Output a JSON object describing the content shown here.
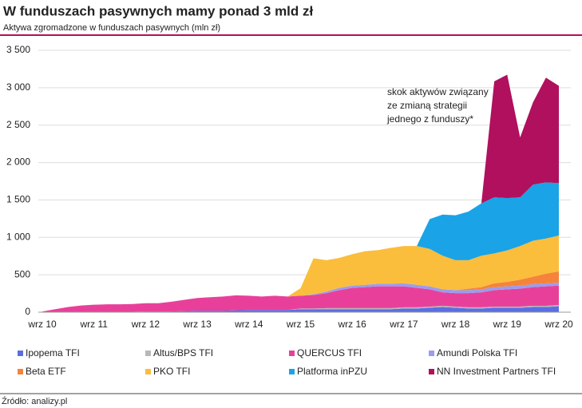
{
  "chart_data": {
    "type": "stacked-area",
    "title": "W funduszach pasywnych mamy ponad 3 mld zł",
    "subtitle": "Aktywa zgromadzone w funduszach pasywnych (mln zł)",
    "source": "Źródło: analizy.pl",
    "annotation": [
      "skok aktywów związany",
      "ze zmianą strategii",
      "jednego z funduszy*"
    ],
    "categories": [
      "wrz 10",
      null,
      null,
      null,
      "wrz 11",
      null,
      null,
      null,
      "wrz 12",
      null,
      null,
      null,
      "wrz 13",
      null,
      null,
      null,
      "wrz 14",
      null,
      null,
      null,
      "wrz 15",
      null,
      null,
      null,
      "wrz 16",
      null,
      null,
      null,
      "wrz 17",
      null,
      null,
      null,
      "wrz 18",
      null,
      null,
      null,
      "wrz 19",
      null,
      null,
      null,
      "wrz 20"
    ],
    "ylim": [
      0,
      3500
    ],
    "yticks": [
      0,
      {
        "value": 500,
        "label": "500"
      },
      {
        "value": 1000,
        "label": "1 000"
      },
      {
        "value": 1500,
        "label": "1 500"
      },
      {
        "value": 2000,
        "label": "2 000"
      },
      {
        "value": 2500,
        "label": "2 500"
      },
      {
        "value": 3000,
        "label": "3 000"
      },
      {
        "value": 3500,
        "label": "3 500"
      }
    ],
    "series": [
      {
        "name": "Ipopema TFI",
        "color": "#5b6ee1",
        "values": [
          0,
          0,
          0,
          0,
          5,
          5,
          5,
          5,
          10,
          10,
          10,
          15,
          20,
          20,
          20,
          25,
          30,
          30,
          30,
          30,
          40,
          40,
          40,
          40,
          40,
          40,
          40,
          40,
          50,
          50,
          60,
          70,
          60,
          50,
          50,
          60,
          60,
          60,
          70,
          70,
          80
        ]
      },
      {
        "name": "Altus/BPS TFI",
        "color": "#b8b8b8",
        "values": [
          0,
          0,
          0,
          0,
          0,
          0,
          0,
          0,
          0,
          0,
          0,
          0,
          0,
          0,
          0,
          0,
          0,
          0,
          0,
          0,
          10,
          10,
          15,
          15,
          15,
          15,
          15,
          15,
          15,
          15,
          15,
          15,
          15,
          15,
          15,
          15,
          15,
          15,
          15,
          15,
          15
        ]
      },
      {
        "name": "QUERCUS TFI",
        "color": "#e8409a",
        "values": [
          10,
          40,
          70,
          90,
          95,
          100,
          100,
          105,
          110,
          110,
          130,
          150,
          170,
          180,
          190,
          200,
          190,
          180,
          190,
          180,
          170,
          180,
          200,
          240,
          270,
          280,
          290,
          290,
          280,
          260,
          230,
          180,
          180,
          190,
          200,
          220,
          230,
          240,
          250,
          260,
          260
        ]
      },
      {
        "name": "Amundi Polska TFI",
        "color": "#9b9bf0",
        "values": [
          0,
          0,
          0,
          0,
          0,
          0,
          0,
          0,
          0,
          0,
          0,
          0,
          0,
          0,
          0,
          0,
          0,
          0,
          0,
          0,
          0,
          10,
          20,
          30,
          30,
          30,
          35,
          35,
          40,
          40,
          40,
          40,
          40,
          40,
          40,
          40,
          40,
          40,
          40,
          40,
          40
        ]
      },
      {
        "name": "Beta ETF",
        "color": "#f5843a",
        "values": [
          0,
          0,
          0,
          0,
          0,
          0,
          0,
          0,
          0,
          0,
          0,
          0,
          0,
          0,
          0,
          0,
          0,
          0,
          0,
          0,
          0,
          0,
          0,
          0,
          0,
          0,
          0,
          0,
          0,
          0,
          0,
          0,
          0,
          20,
          30,
          50,
          60,
          80,
          100,
          130,
          150
        ]
      },
      {
        "name": "PKO TFI",
        "color": "#fbbd3c",
        "values": [
          0,
          0,
          0,
          0,
          0,
          0,
          0,
          0,
          0,
          0,
          0,
          0,
          0,
          0,
          0,
          0,
          0,
          0,
          0,
          0,
          100,
          480,
          420,
          400,
          420,
          450,
          450,
          480,
          500,
          520,
          500,
          450,
          400,
          380,
          420,
          400,
          420,
          450,
          480,
          470,
          480
        ]
      },
      {
        "name": "Platforma inPZU",
        "color": "#1aa3e6",
        "values": [
          0,
          0,
          0,
          0,
          0,
          0,
          0,
          0,
          0,
          0,
          0,
          0,
          0,
          0,
          0,
          0,
          0,
          0,
          0,
          0,
          0,
          0,
          0,
          0,
          0,
          0,
          0,
          0,
          0,
          0,
          400,
          550,
          600,
          650,
          700,
          750,
          700,
          650,
          750,
          750,
          700
        ]
      },
      {
        "name": "NN Investment Partners TFI",
        "color": "#b0105e",
        "values": [
          0,
          0,
          0,
          0,
          0,
          0,
          0,
          0,
          0,
          0,
          0,
          0,
          0,
          0,
          0,
          0,
          0,
          0,
          0,
          0,
          0,
          0,
          0,
          0,
          0,
          0,
          0,
          0,
          0,
          0,
          0,
          0,
          0,
          0,
          0,
          1550,
          1650,
          800,
          1100,
          1400,
          1300
        ]
      }
    ]
  }
}
